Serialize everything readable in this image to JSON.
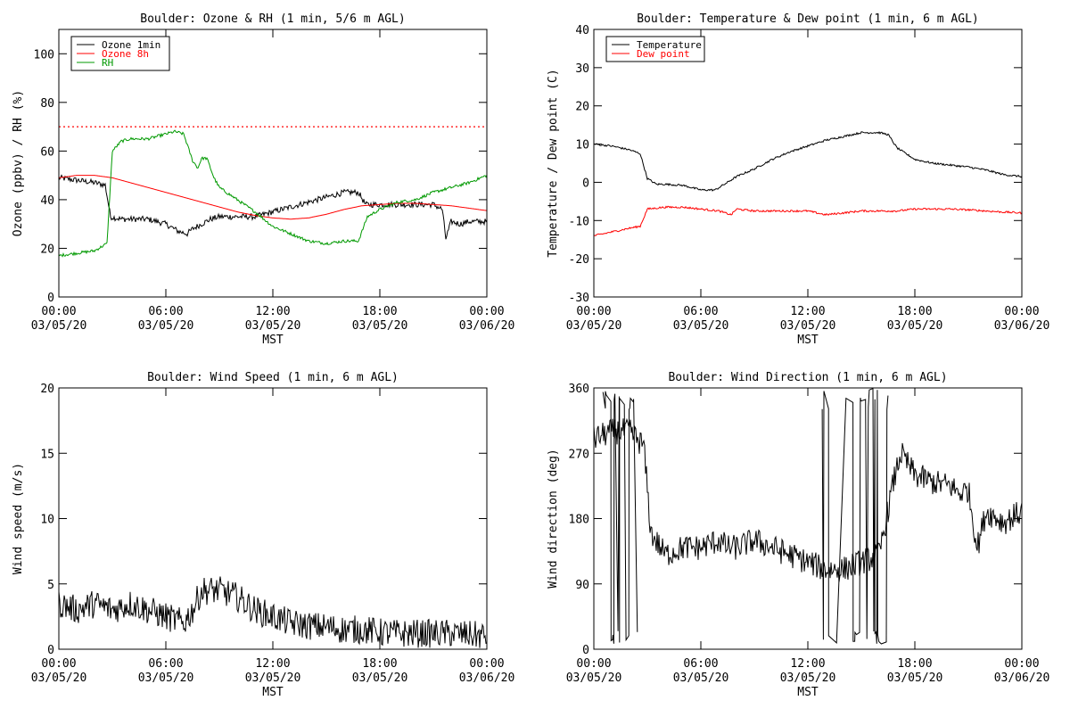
{
  "chart_data": [
    {
      "type": "line",
      "title": "Boulder: Ozone & RH (1 min, 5/6 m AGL)",
      "xlabel": "MST",
      "ylabel": "Ozone (ppbv) / RH (%)",
      "xlim": [
        0,
        24
      ],
      "ylim": [
        0,
        110
      ],
      "yticks": [
        0,
        20,
        40,
        60,
        80,
        100
      ],
      "xtick_labels": [
        [
          "00:00",
          "03/05/20"
        ],
        [
          "06:00",
          "03/05/20"
        ],
        [
          "12:00",
          "03/05/20"
        ],
        [
          "18:00",
          "03/05/20"
        ],
        [
          "00:00",
          "03/06/20"
        ]
      ],
      "legend_position": "top-left",
      "reference_line": {
        "y": 70,
        "style": "dotted",
        "color": "#ff0000"
      },
      "series": [
        {
          "name": "Ozone 1min",
          "color": "#000000",
          "noise": 1.2,
          "x": [
            0,
            1,
            2,
            2.6,
            2.9,
            3.5,
            4,
            5,
            6,
            6.7,
            7.2,
            7.5,
            8,
            8.5,
            9,
            10,
            11,
            12,
            13,
            14,
            15,
            16,
            16.8,
            17.2,
            18,
            19,
            20,
            21,
            21.5,
            21.7,
            22,
            22.5,
            23,
            24
          ],
          "y": [
            49,
            48,
            47,
            46,
            33,
            32,
            32,
            32,
            30,
            27,
            26,
            28,
            30,
            32,
            33,
            33,
            33,
            35,
            37,
            39,
            41,
            43,
            43,
            38,
            38,
            38,
            38,
            38,
            36,
            24,
            31,
            30,
            31,
            31
          ]
        },
        {
          "name": "Ozone 8h",
          "color": "#ff0000",
          "noise": 0,
          "x": [
            0,
            1,
            2,
            3,
            4,
            5,
            6,
            7,
            8,
            9,
            10,
            11,
            12,
            13,
            14,
            15,
            16,
            17,
            18,
            19,
            20,
            21,
            22,
            23,
            24
          ],
          "y": [
            49,
            50,
            50,
            49,
            47,
            45,
            43,
            41,
            39,
            37,
            35,
            33.5,
            32.5,
            32,
            32.5,
            34,
            36,
            37.5,
            38,
            38.5,
            38.5,
            38,
            37.5,
            36.5,
            35.5
          ]
        },
        {
          "name": "RH",
          "color": "#009900",
          "noise": 0.6,
          "x": [
            0,
            1,
            2,
            2.7,
            3,
            3.5,
            4,
            5,
            6,
            6.5,
            7,
            7.5,
            7.8,
            8,
            8.3,
            8.7,
            9,
            10,
            11,
            12,
            13,
            14,
            15,
            16,
            16.8,
            17.3,
            18,
            19,
            20,
            21,
            22,
            23,
            24
          ],
          "y": [
            17,
            18,
            19,
            22,
            60,
            64,
            65,
            65,
            67,
            68,
            67,
            56,
            53,
            57,
            57,
            49,
            45,
            40,
            35,
            29,
            26,
            23,
            22,
            23,
            23,
            33,
            36,
            39,
            40,
            43,
            45,
            47,
            50
          ]
        }
      ]
    },
    {
      "type": "line",
      "title": "Boulder: Temperature & Dew point (1 min, 6 m AGL)",
      "xlabel": "MST",
      "ylabel": "Temperature / Dew point (C)",
      "xlim": [
        0,
        24
      ],
      "ylim": [
        -30,
        40
      ],
      "yticks": [
        -30,
        -20,
        -10,
        0,
        10,
        20,
        30,
        40
      ],
      "xtick_labels": [
        [
          "00:00",
          "03/05/20"
        ],
        [
          "06:00",
          "03/05/20"
        ],
        [
          "12:00",
          "03/05/20"
        ],
        [
          "18:00",
          "03/05/20"
        ],
        [
          "00:00",
          "03/06/20"
        ]
      ],
      "legend_position": "top-left",
      "series": [
        {
          "name": "Temperature",
          "color": "#000000",
          "noise": 0.25,
          "x": [
            0,
            1,
            2,
            2.6,
            3,
            3.5,
            4,
            5,
            6,
            6.8,
            7.5,
            8,
            9,
            10,
            11,
            12,
            13,
            14,
            15,
            16,
            16.5,
            17,
            18,
            19,
            20,
            21,
            22,
            23,
            24
          ],
          "y": [
            10,
            9.5,
            8.5,
            7.5,
            1,
            -0.5,
            -0.5,
            -0.8,
            -2,
            -2,
            0,
            1.5,
            3.5,
            6,
            8,
            9.5,
            11,
            12,
            13,
            13,
            12.5,
            9,
            6,
            5,
            4.5,
            4,
            3.2,
            2,
            1.5
          ]
        },
        {
          "name": "Dew point",
          "color": "#ff0000",
          "noise": 0.25,
          "x": [
            0,
            1,
            2,
            2.6,
            3,
            4,
            5,
            6,
            7,
            7.7,
            8,
            9,
            10,
            11,
            12,
            13,
            14,
            15,
            16,
            17,
            18,
            19,
            20,
            21,
            22,
            23,
            24
          ],
          "y": [
            -14,
            -13,
            -12,
            -11.5,
            -7,
            -6.5,
            -6.5,
            -7,
            -7.5,
            -8.5,
            -7,
            -7.5,
            -7.5,
            -7.5,
            -7.5,
            -8.5,
            -8,
            -7.5,
            -7.5,
            -7.5,
            -7,
            -7,
            -7,
            -7.2,
            -7.5,
            -7.8,
            -8
          ]
        }
      ]
    },
    {
      "type": "line",
      "title": "Boulder: Wind Speed (1 min, 6 m AGL)",
      "xlabel": "MST",
      "ylabel": "Wind speed (m/s)",
      "xlim": [
        0,
        24
      ],
      "ylim": [
        0,
        20
      ],
      "yticks": [
        0,
        5,
        10,
        15,
        20
      ],
      "xtick_labels": [
        [
          "00:00",
          "03/05/20"
        ],
        [
          "06:00",
          "03/05/20"
        ],
        [
          "12:00",
          "03/05/20"
        ],
        [
          "18:00",
          "03/05/20"
        ],
        [
          "00:00",
          "03/06/20"
        ]
      ],
      "series": [
        {
          "color": "#000000",
          "noise": 1.1,
          "x": [
            0,
            1,
            2,
            3,
            4,
            5,
            6,
            7,
            7.5,
            8,
            9,
            10,
            11,
            12,
            13,
            14,
            15,
            16,
            17,
            18,
            19,
            20,
            21,
            22,
            23,
            24
          ],
          "y": [
            3.5,
            3,
            3.5,
            3,
            3.5,
            3,
            2.5,
            2,
            3,
            4.5,
            4.5,
            4,
            3,
            2.5,
            2,
            1.8,
            1.7,
            1.5,
            1.5,
            1.3,
            1.2,
            1.2,
            1.2,
            1.2,
            1.1,
            1
          ]
        }
      ]
    },
    {
      "type": "line",
      "title": "Boulder: Wind Direction (1 min, 6 m AGL)",
      "xlabel": "MST",
      "ylabel": "Wind direction (deg)",
      "xlim": [
        0,
        24
      ],
      "ylim": [
        0,
        360
      ],
      "yticks": [
        0,
        90,
        180,
        270,
        360
      ],
      "xtick_labels": [
        [
          "00:00",
          "03/05/20"
        ],
        [
          "06:00",
          "03/05/20"
        ],
        [
          "12:00",
          "03/05/20"
        ],
        [
          "18:00",
          "03/05/20"
        ],
        [
          "00:00",
          "03/06/20"
        ]
      ],
      "series": [
        {
          "color": "#000000",
          "noise": 18,
          "x": [
            0,
            1,
            2,
            2.8,
            3.2,
            4,
            5,
            6,
            7,
            7.5,
            8,
            9,
            10,
            11,
            12,
            13,
            14,
            15,
            16,
            16.8,
            17.2,
            18,
            19,
            20,
            20.5,
            21,
            21.5,
            22,
            23,
            24
          ],
          "y": [
            290,
            300,
            300,
            280,
            160,
            130,
            140,
            140,
            150,
            140,
            140,
            150,
            140,
            130,
            120,
            110,
            110,
            120,
            130,
            230,
            270,
            240,
            230,
            225,
            215,
            220,
            140,
            190,
            175,
            190
          ]
        }
      ]
    }
  ]
}
